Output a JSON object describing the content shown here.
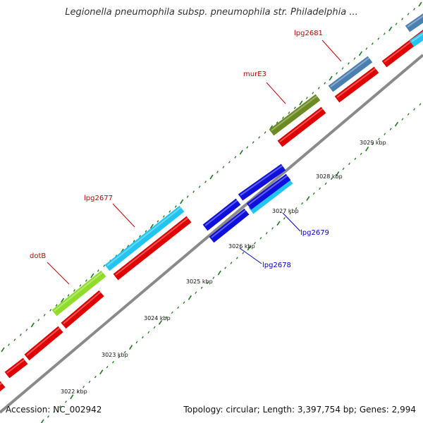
{
  "title": "Legionella pneumophila subsp. pneumophila str. Philadelphia ...",
  "footer": {
    "accession": "Accession: NC_002942",
    "summary": "Topology: circular; Length: 3,397,754 bp; Genes: 2,994"
  },
  "colors": {
    "forward_cds": "#e00000",
    "reverse_cds": "#1010dd",
    "cyan_gene": "#22c4f0",
    "lime_gene": "#8fdc2a",
    "olive_gene": "#6b8a22",
    "steel_gene": "#4a7fb0",
    "backbone": "#8a8a8a",
    "tick": "#1a7a1a",
    "label_forward": "#cc0000",
    "label_reverse": "#0000cc"
  },
  "scale_labels": [
    "3022 kbp",
    "3023 kbp",
    "3024 kbp",
    "3025 kbp",
    "3026 kbp",
    "3027 kbp",
    "3028 kbp",
    "3029 kbp"
  ],
  "gene_labels": [
    {
      "name": "lpg2681",
      "text": "lpg2681",
      "strand": "forward"
    },
    {
      "name": "murE3",
      "text": "murE3",
      "strand": "forward"
    },
    {
      "name": "lpg2677",
      "text": "lpg2677",
      "strand": "forward"
    },
    {
      "name": "dotB",
      "text": "dotB",
      "strand": "forward"
    },
    {
      "name": "lpg2679",
      "text": "lpg2679",
      "strand": "reverse"
    },
    {
      "name": "lpg2678",
      "text": "lpg2678",
      "strand": "reverse"
    }
  ]
}
